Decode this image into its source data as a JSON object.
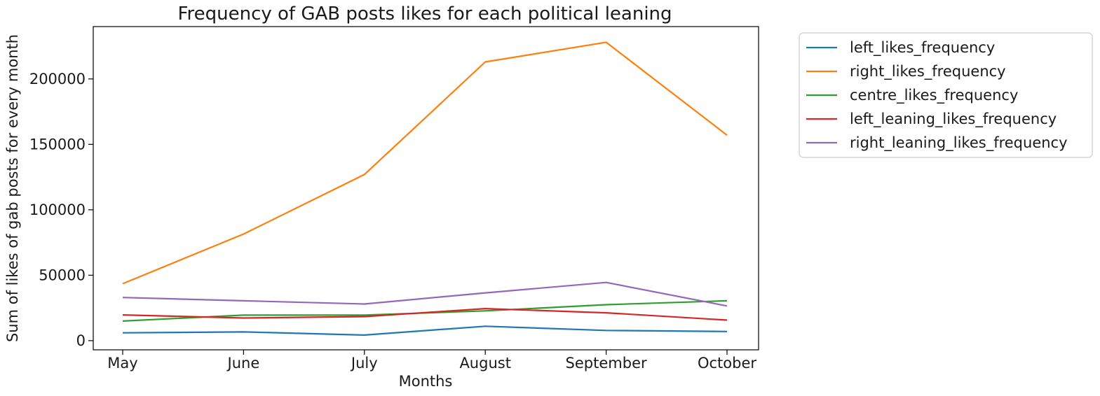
{
  "chart_data": {
    "type": "line",
    "title": "Frequency of GAB posts likes for each political leaning",
    "xlabel": "Months",
    "ylabel": "Sum of likes of gab posts for every month",
    "categories": [
      "May",
      "June",
      "July",
      "August",
      "September",
      "October"
    ],
    "y_ticks": [
      0,
      50000,
      100000,
      150000,
      200000
    ],
    "ylim": [
      -7000,
      240000
    ],
    "grid": false,
    "legend_position": "outside-top-right",
    "series": [
      {
        "name": "left_likes_frequency",
        "color": "#1f77b4",
        "values": [
          6000,
          6700,
          4300,
          11000,
          7800,
          7000
        ]
      },
      {
        "name": "right_likes_frequency",
        "color": "#ff7f0e",
        "values": [
          43500,
          81500,
          127000,
          213000,
          228000,
          157000
        ]
      },
      {
        "name": "centre_likes_frequency",
        "color": "#2ca02c",
        "values": [
          15000,
          19500,
          19500,
          22800,
          27500,
          30500
        ]
      },
      {
        "name": "left_leaning_likes_frequency",
        "color": "#d62728",
        "values": [
          19700,
          17300,
          18400,
          24500,
          21300,
          15700
        ]
      },
      {
        "name": "right_leaning_likes_frequency",
        "color": "#9467bd",
        "values": [
          33000,
          30500,
          28000,
          36500,
          44500,
          26500
        ]
      }
    ]
  }
}
